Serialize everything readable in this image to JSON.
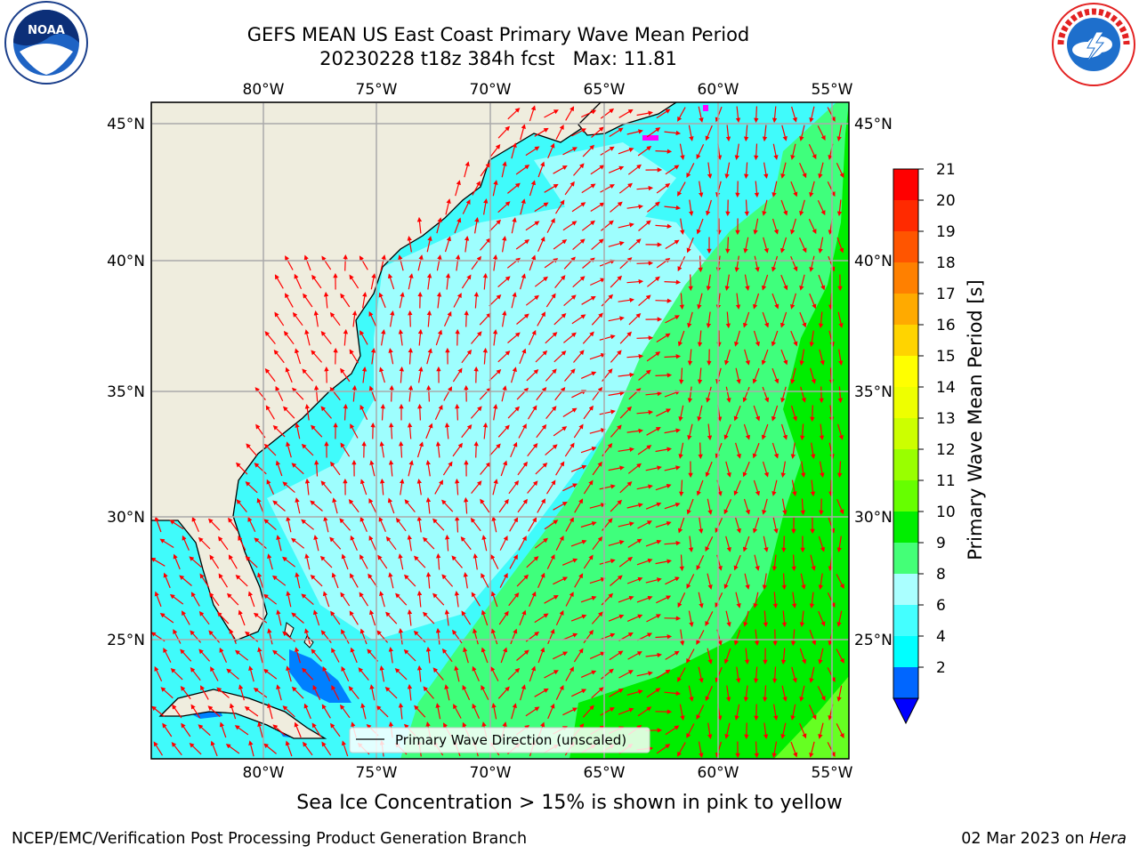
{
  "header": {
    "title_line1": "GEFS MEAN US East Coast Primary Wave Mean Period",
    "title_line2": "20230228 t18z 384h fcst   Max: 11.81"
  },
  "logos": {
    "noaa_text": "NOAA",
    "noaa_ring_text": "NATIONAL OCEANIC AND ATMOSPHERIC ADMINISTRATION · U.S. DEPARTMENT OF COMMERCE",
    "nws_ring_text": "NATIONAL WEATHER SERVICE"
  },
  "map": {
    "lon_labels": [
      "80°W",
      "75°W",
      "70°W",
      "65°W",
      "60°W",
      "55°W"
    ],
    "lat_labels": [
      "45°N",
      "40°N",
      "35°N",
      "30°N",
      "25°N"
    ],
    "legend_label": "Primary Wave Direction (unscaled)",
    "colors": {
      "land": "#efedde",
      "ocean_cyan": "#40fbfb",
      "ocean_pale": "#9efefe",
      "ocean_blue": "#0080ff",
      "green_light": "#3fff7c",
      "green": "#00ee00",
      "arrow": "#ff0000",
      "gridline": "#aaaaaa",
      "ice": "#ff00ff"
    }
  },
  "colorbar": {
    "label": "Primary Wave Mean Period [s]",
    "ticks": [
      "21",
      "20",
      "19",
      "18",
      "17",
      "16",
      "15",
      "14",
      "13",
      "12",
      "11",
      "10",
      "9",
      "8",
      "6",
      "4",
      "2"
    ],
    "colors": [
      "#ff0000",
      "#ff2a00",
      "#ff5500",
      "#ff8000",
      "#ffaa00",
      "#ffd400",
      "#ffff00",
      "#eeff00",
      "#ccff00",
      "#99ff00",
      "#66ff00",
      "#00ee00",
      "#44ff77",
      "#aaffff",
      "#44ffff",
      "#00ffff",
      "#0066ff"
    ],
    "extend_color": "#0000ff"
  },
  "footer": {
    "sea_ice_note": "Sea Ice Concentration > 15% is shown in pink to yellow",
    "branch": "NCEP/EMC/Verification Post Processing Product Generation Branch",
    "date": "02 Mar 2023 on ",
    "host": "Hera"
  }
}
